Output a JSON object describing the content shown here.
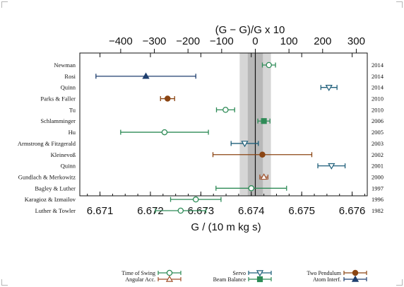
{
  "chart_data": {
    "type": "scatter",
    "subtype": "error-bar plot (horizontal)",
    "xlabel": "G / (10<sup>−11</sup> m<sup>3</sup> kg<sup>−1</sup> s<sup>−2</sup>)",
    "x2label": "(G − G<sub>CODATA2014</sub>)/G<sub>CODATA2014</sub> x 10<sup>6</sup>",
    "xlim": [
      6.6706,
      6.6763
    ],
    "xticks": [
      "6.671",
      "6.672",
      "6.673",
      "6.674",
      "6.675",
      "6.676"
    ],
    "x2ticks": [
      "−400",
      "−300",
      "−200",
      "−100",
      "0",
      "100",
      "200",
      "300"
    ],
    "codata_value": 6.67408,
    "codata_band": [
      6.67377,
      6.67439
    ],
    "codata_band_inner": [
      6.67393,
      6.67423
    ],
    "experiments": [
      {
        "label": "Newman <i>et al.</i>",
        "year": "2014",
        "value": 6.67435,
        "err": 0.00013,
        "method": "Time of Swing"
      },
      {
        "label": "Rosi <i>et al.</i>",
        "year": "2014",
        "value": 6.67191,
        "err": 0.00099,
        "method": "Atom Interf."
      },
      {
        "label": "Quinn <i>et al.</i>",
        "year": "2014",
        "value": 6.67554,
        "err": 0.00016,
        "method": "Servo"
      },
      {
        "label": "Parks & Faller",
        "year": "2010",
        "value": 6.67234,
        "err": 0.00014,
        "method": "Two Pendulum"
      },
      {
        "label": "Tu <i>et al.</i>",
        "year": "2010",
        "value": 6.67349,
        "err": 0.00018,
        "method": "Time of Swing"
      },
      {
        "label": "Schlamminger <i>et al.</i>",
        "year": "2006",
        "value": 6.67425,
        "err": 0.00012,
        "method": "Beam Balance"
      },
      {
        "label": "Hu <i>et al.</i>",
        "year": "2005",
        "value": 6.67228,
        "err": 0.00087,
        "method": "Time of Swing"
      },
      {
        "label": "Armstrong & Fitzgerald",
        "year": "2003",
        "value": 6.67387,
        "err": 0.00027,
        "method": "Servo"
      },
      {
        "label": "Kleinevoß",
        "year": "2002",
        "value": 6.67422,
        "err": 0.00098,
        "method": "Two Pendulum"
      },
      {
        "label": "Quinn <i>et al.</i>",
        "year": "2001",
        "value": 6.67559,
        "err": 0.00027,
        "method": "Servo"
      },
      {
        "label": "Gundlach & Merkowitz",
        "year": "2000",
        "value": 6.67425,
        "err": 8e-05,
        "method": "Angular Acc."
      },
      {
        "label": "Bagley & Luther",
        "year": "1997",
        "value": 6.674,
        "err": 0.0007,
        "method": "Time of Swing"
      },
      {
        "label": "Karagioz & Izmailov",
        "year": "1996",
        "value": 6.6729,
        "err": 0.0005,
        "method": "Time of Swing"
      },
      {
        "label": "Luther & Towler",
        "year": "1982",
        "value": 6.6726,
        "err": 0.0005,
        "method": "Time of Swing"
      }
    ],
    "legend": [
      {
        "name": "Time of Swing",
        "color": "#2e8b57",
        "marker": "circle"
      },
      {
        "name": "Angular Acc.",
        "color": "#a0522d",
        "marker": "triangle-up"
      },
      {
        "name": "Servo",
        "color": "#1f5f7a",
        "marker": "triangle-down"
      },
      {
        "name": "Beam Balance",
        "color": "#2e8b57",
        "marker": "square"
      },
      {
        "name": "Two Pendulum",
        "color": "#8b4513",
        "marker": "circle-filled"
      },
      {
        "name": "Atom Interf.",
        "color": "#1f3f6f",
        "marker": "triangle-up-filled"
      }
    ],
    "legend_labels_shown": [
      "Time of Swing",
      "Angular Acc.",
      "Servo",
      "Beam Balance",
      "Two Pendulum",
      "Atom Interf."
    ],
    "colors": {
      "Time of Swing": "#2e8b57",
      "Angular Acc.": "#a0522d",
      "Servo": "#1f5f7a",
      "Beam Balance": "#2e8b57",
      "Two Pendulum": "#8b4513",
      "Atom Interf.": "#1f3f6f",
      "band_outer": "#d6d6d6",
      "band_inner": "#b8b8b8"
    },
    "grid": false,
    "legend_placement": "bottom"
  }
}
